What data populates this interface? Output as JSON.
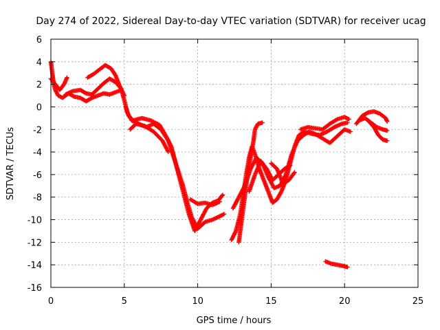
{
  "chart_data": {
    "type": "scatter",
    "title": "Day 274 of 2022, Sidereal Day-to-day VTEC variation (SDTVAR) for receiver ucag",
    "xlabel": "GPS time / hours",
    "ylabel": "SDTVAR / TECUs",
    "xlim": [
      0,
      25
    ],
    "ylim": [
      -16,
      6
    ],
    "xticks": [
      "0",
      "5",
      "10",
      "15",
      "20",
      "25"
    ],
    "yticks": [
      "6",
      "4",
      "2",
      "0",
      "-2",
      "-4",
      "-6",
      "-8",
      "-10",
      "-12",
      "-14",
      "-16"
    ],
    "grid": true,
    "marker": "+",
    "color": "#ff0000",
    "series": [
      {
        "name": "trace-1",
        "points": [
          [
            0,
            4
          ],
          [
            0.1,
            3
          ],
          [
            0.2,
            2
          ],
          [
            0.3,
            1.5
          ],
          [
            0.5,
            1
          ],
          [
            0.8,
            0.8
          ],
          [
            1.2,
            1.2
          ],
          [
            1.6,
            0.9
          ],
          [
            2,
            0.8
          ],
          [
            2.4,
            0.5
          ],
          [
            2.8,
            0.8
          ],
          [
            3.2,
            1
          ],
          [
            3.6,
            1.2
          ],
          [
            4,
            1.1
          ],
          [
            4.4,
            1.3
          ],
          [
            4.8,
            1.5
          ],
          [
            5,
            0.6
          ],
          [
            5.2,
            -0.5
          ],
          [
            5.5,
            -1.2
          ],
          [
            6,
            -1.5
          ],
          [
            6.5,
            -1.8
          ],
          [
            7,
            -1.5
          ],
          [
            7.5,
            -2
          ],
          [
            8,
            -3
          ],
          [
            8.5,
            -5
          ],
          [
            9,
            -7
          ],
          [
            9.3,
            -8.5
          ],
          [
            9.6,
            -9.8
          ],
          [
            10,
            -10.8
          ],
          [
            10.5,
            -10.2
          ],
          [
            11,
            -10
          ],
          [
            11.5,
            -9.7
          ],
          [
            11.8,
            -9.5
          ]
        ]
      },
      {
        "name": "trace-2",
        "points": [
          [
            0,
            2.5
          ],
          [
            0.3,
            2
          ],
          [
            0.6,
            1.5
          ],
          [
            0.9,
            2
          ],
          [
            1.1,
            2.6
          ]
        ]
      },
      {
        "name": "trace-3",
        "points": [
          [
            2.5,
            2.6
          ],
          [
            2.9,
            2.9
          ],
          [
            3.3,
            3.3
          ],
          [
            3.7,
            3.7
          ],
          [
            4.1,
            3.4
          ],
          [
            4.4,
            2.8
          ],
          [
            4.7,
            1.8
          ],
          [
            5,
            1
          ]
        ]
      },
      {
        "name": "trace-4",
        "points": [
          [
            1,
            1.1
          ],
          [
            1.5,
            1.4
          ],
          [
            2,
            1.5
          ],
          [
            2.4,
            1.2
          ],
          [
            2.8,
            1.1
          ],
          [
            3.2,
            1.6
          ],
          [
            3.6,
            2.1
          ],
          [
            4,
            2.5
          ],
          [
            4.4,
            2.2
          ],
          [
            4.8,
            1.6
          ]
        ]
      },
      {
        "name": "trace-5",
        "points": [
          [
            5.1,
            0
          ],
          [
            5.3,
            -0.8
          ],
          [
            5.6,
            -1.2
          ],
          [
            6.2,
            -1
          ],
          [
            6.8,
            -1.2
          ],
          [
            7.4,
            -1.6
          ],
          [
            7.8,
            -2.5
          ],
          [
            8.2,
            -3.5
          ],
          [
            8.6,
            -5.5
          ],
          [
            9,
            -7.5
          ],
          [
            9.4,
            -9.5
          ],
          [
            9.8,
            -11
          ],
          [
            10.2,
            -10
          ],
          [
            10.6,
            -9
          ],
          [
            11,
            -8.5
          ],
          [
            11.4,
            -8.3
          ],
          [
            11.7,
            -7.8
          ]
        ]
      },
      {
        "name": "trace-6",
        "points": [
          [
            5.4,
            -2
          ],
          [
            5.8,
            -1.5
          ],
          [
            6.4,
            -1.7
          ],
          [
            7,
            -2.2
          ],
          [
            7.6,
            -3
          ],
          [
            8,
            -4
          ]
        ]
      },
      {
        "name": "trace-7",
        "points": [
          [
            9.5,
            -8.2
          ],
          [
            10,
            -8.6
          ],
          [
            10.5,
            -8.5
          ],
          [
            11,
            -8.7
          ],
          [
            11.5,
            -8.4
          ]
        ]
      },
      {
        "name": "trace-8",
        "points": [
          [
            12.3,
            -11.8
          ],
          [
            12.6,
            -11
          ],
          [
            12.9,
            -9.5
          ],
          [
            13.1,
            -7.8
          ],
          [
            13.3,
            -6
          ],
          [
            13.5,
            -4.5
          ],
          [
            13.7,
            -3.5
          ],
          [
            13.9,
            -4.2
          ],
          [
            14.2,
            -5.5
          ],
          [
            14.5,
            -6.5
          ],
          [
            14.8,
            -7.5
          ],
          [
            15.1,
            -8.5
          ],
          [
            15.4,
            -8.2
          ],
          [
            15.7,
            -7.5
          ],
          [
            16,
            -6.5
          ],
          [
            16.3,
            -5
          ],
          [
            16.6,
            -3.5
          ],
          [
            16.9,
            -2.5
          ],
          [
            17.3,
            -2.2
          ],
          [
            17.8,
            -2.4
          ],
          [
            18.3,
            -2.5
          ],
          [
            18.8,
            -2.2
          ],
          [
            19.3,
            -1.8
          ],
          [
            19.8,
            -1.5
          ],
          [
            20.2,
            -1.4
          ]
        ]
      },
      {
        "name": "trace-9",
        "points": [
          [
            12.8,
            -12
          ],
          [
            13,
            -10
          ],
          [
            13.2,
            -8
          ],
          [
            13.4,
            -6
          ],
          [
            13.6,
            -4.5
          ],
          [
            13.8,
            -3
          ],
          [
            13.9,
            -2
          ],
          [
            14.1,
            -1.5
          ],
          [
            14.4,
            -1.4
          ]
        ]
      },
      {
        "name": "trace-10",
        "points": [
          [
            12.4,
            -9
          ],
          [
            12.8,
            -8
          ],
          [
            13.2,
            -7
          ],
          [
            13.6,
            -5.5
          ],
          [
            14,
            -4.5
          ],
          [
            14.4,
            -5
          ],
          [
            14.8,
            -6.2
          ],
          [
            15.2,
            -7.2
          ],
          [
            15.6,
            -7
          ],
          [
            16,
            -6
          ],
          [
            16.4,
            -4.2
          ],
          [
            16.8,
            -3
          ],
          [
            17.2,
            -2.5
          ],
          [
            17.6,
            -2.2
          ],
          [
            18,
            -2.4
          ],
          [
            18.5,
            -2.8
          ],
          [
            19,
            -3.2
          ],
          [
            19.5,
            -2.6
          ],
          [
            20,
            -2
          ],
          [
            20.4,
            -2.2
          ]
        ]
      },
      {
        "name": "trace-11",
        "points": [
          [
            13.5,
            -7.5
          ],
          [
            13.9,
            -6
          ],
          [
            14.3,
            -4.8
          ],
          [
            14.7,
            -5.5
          ],
          [
            15.1,
            -6.5
          ],
          [
            15.5,
            -6
          ],
          [
            15.9,
            -5.5
          ],
          [
            16.3,
            -5.2
          ]
        ]
      },
      {
        "name": "trace-12",
        "points": [
          [
            15,
            -5
          ],
          [
            15.4,
            -5.5
          ],
          [
            15.8,
            -6.8
          ],
          [
            16.2,
            -6.5
          ],
          [
            16.6,
            -5.8
          ]
        ]
      },
      {
        "name": "trace-13",
        "points": [
          [
            17,
            -2
          ],
          [
            17.5,
            -1.8
          ],
          [
            18,
            -1.9
          ],
          [
            18.5,
            -2
          ],
          [
            19,
            -1.5
          ],
          [
            19.5,
            -1.1
          ],
          [
            20,
            -0.9
          ],
          [
            20.3,
            -1.1
          ]
        ]
      },
      {
        "name": "trace-14",
        "points": [
          [
            18.7,
            -13.7
          ],
          [
            19.1,
            -13.9
          ],
          [
            19.5,
            -14
          ],
          [
            19.9,
            -14.1
          ],
          [
            20.2,
            -14.2
          ]
        ]
      },
      {
        "name": "trace-15",
        "points": [
          [
            20.8,
            -1.5
          ],
          [
            21.2,
            -0.8
          ],
          [
            21.6,
            -0.5
          ],
          [
            22,
            -0.4
          ],
          [
            22.4,
            -0.6
          ],
          [
            22.8,
            -1
          ],
          [
            22.9,
            -1.3
          ]
        ]
      },
      {
        "name": "trace-16",
        "points": [
          [
            21,
            -1.2
          ],
          [
            21.4,
            -1
          ],
          [
            21.8,
            -1.4
          ],
          [
            22.2,
            -1.8
          ],
          [
            22.6,
            -2
          ],
          [
            22.9,
            -2.1
          ]
        ]
      },
      {
        "name": "trace-17",
        "points": [
          [
            21.6,
            -1.2
          ],
          [
            22,
            -1.8
          ],
          [
            22.3,
            -2.5
          ],
          [
            22.6,
            -2.9
          ],
          [
            22.9,
            -3
          ]
        ]
      }
    ]
  }
}
